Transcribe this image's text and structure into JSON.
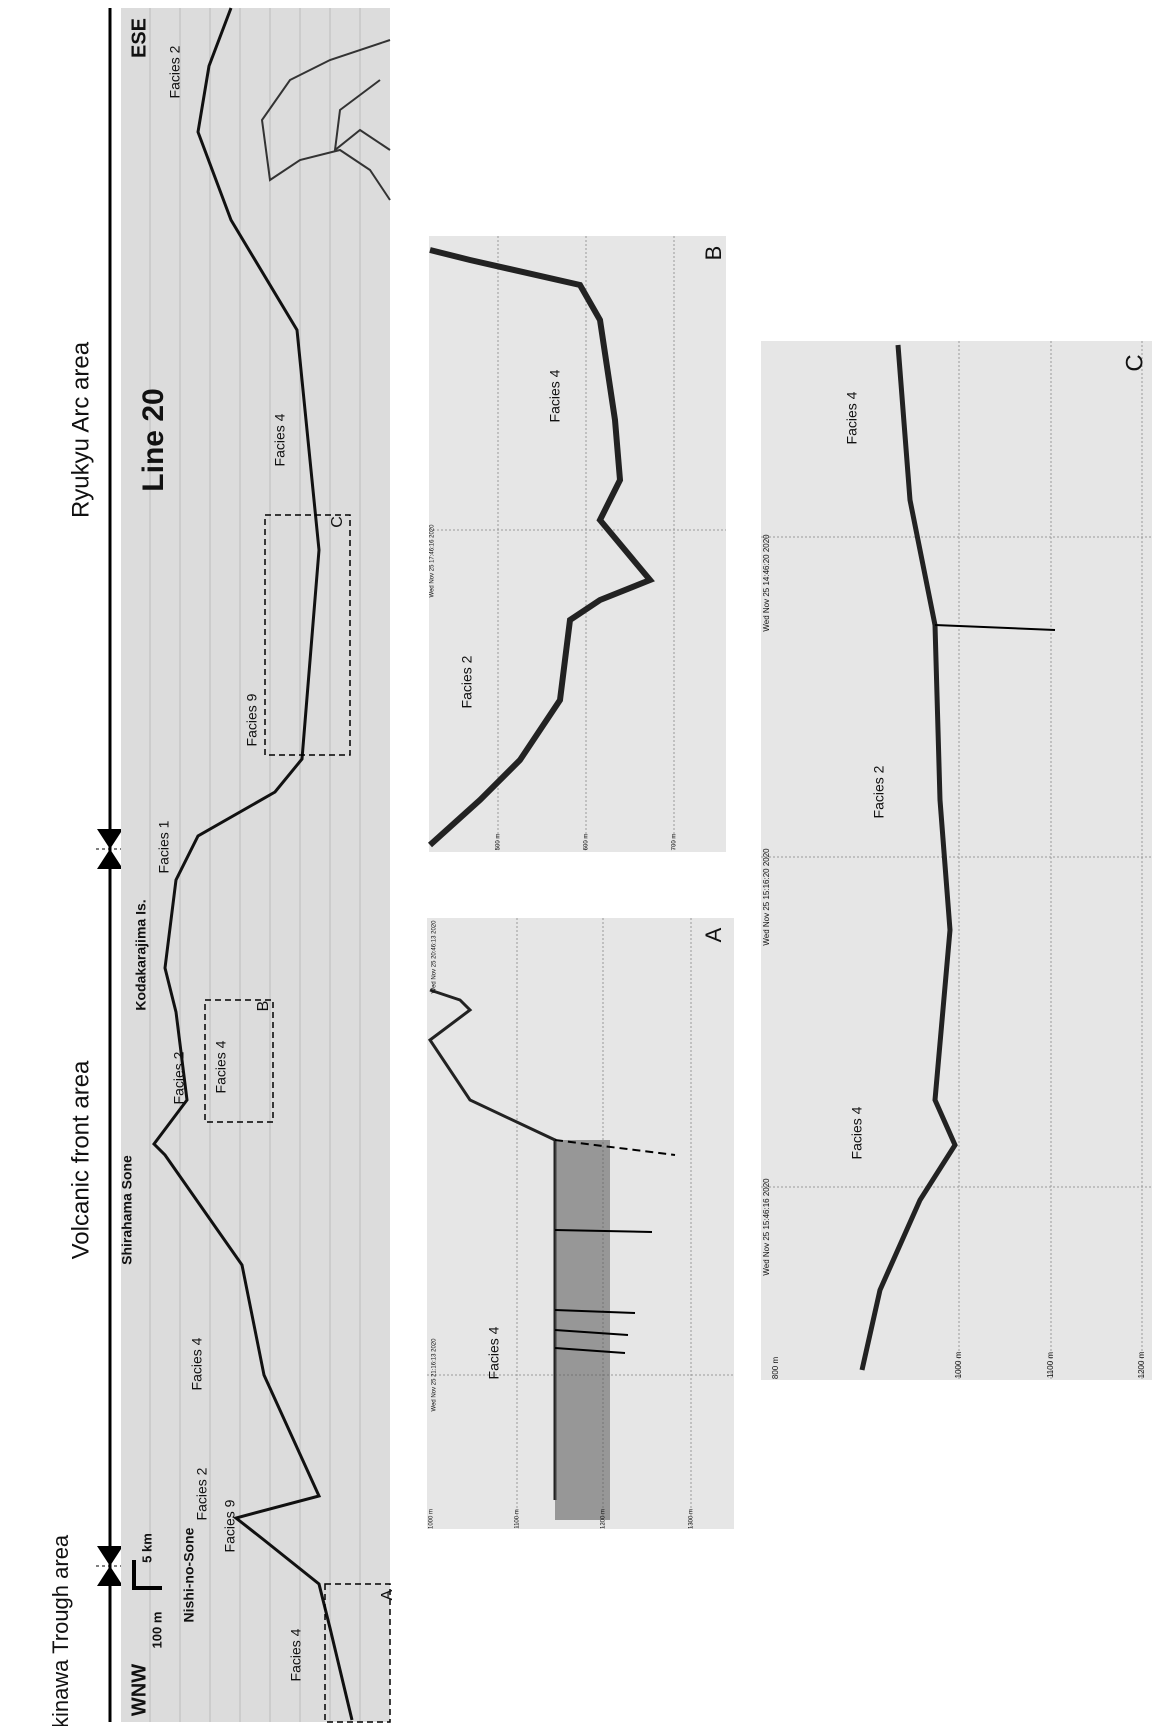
{
  "areas": [
    "Okinawa Trough area",
    "Volcanic front area",
    "Ryukyu Arc area"
  ],
  "main_profile": {
    "title": "Line 20",
    "west": "WNW",
    "east": "ESE",
    "scale_vertical": "100 m",
    "scale_horizontal": "5 km",
    "places": [
      "Nishi-no-Sone",
      "Shirahama Sone",
      "Kodakarajima Is."
    ],
    "facies_labels": [
      "Facies 4",
      "Facies 9",
      "Facies 2",
      "Facies 4",
      "Facies 2",
      "Facies 4",
      "Facies 1",
      "Facies 9",
      "Facies 4",
      "Facies 2"
    ],
    "boxes": [
      "A",
      "B",
      "C"
    ]
  },
  "panel_a": {
    "label": "A",
    "facies_labels": [
      "Facies 4"
    ],
    "times": [
      "Wed Nov 25 20:46:13 2020",
      "Wed Nov 25 21:16:13 2020"
    ],
    "depths": [
      "1000 m",
      "1100 m",
      "1200 m",
      "1300 m"
    ]
  },
  "panel_b": {
    "label": "B",
    "facies_labels": [
      "Facies 2",
      "Facies 4"
    ],
    "times": [
      "Wed Nov 25 17:46:16 2020"
    ],
    "depths": [
      "500 m",
      "600 m",
      "700 m"
    ]
  },
  "panel_c": {
    "label": "C",
    "facies_labels": [
      "Facies 4",
      "Facies 2",
      "Facies 4"
    ],
    "times": [
      "Wed Nov 25 14:46:20 2020",
      "Wed Nov 25 15:16:20 2020",
      "Wed Nov 25 15:46:16 2020"
    ],
    "depths": [
      "800 m",
      "1000 m",
      "1100 m",
      "1200 m"
    ]
  }
}
